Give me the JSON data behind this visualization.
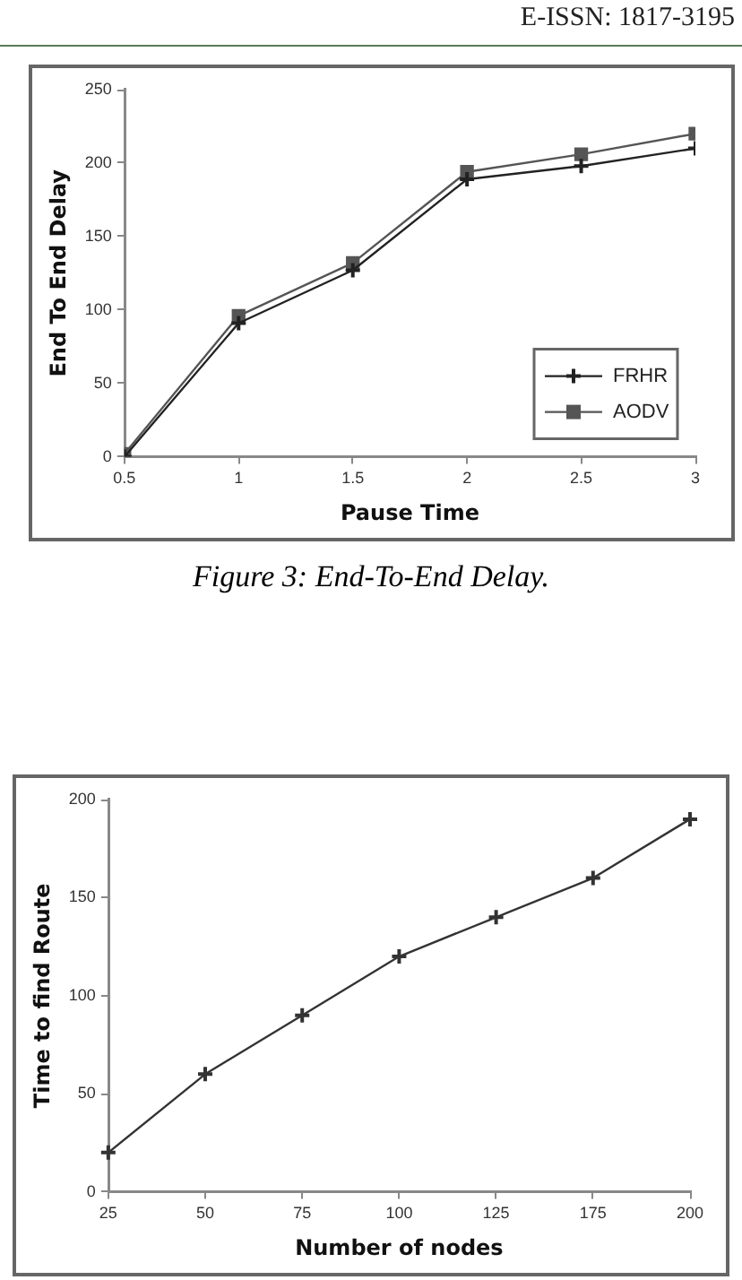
{
  "chart_data": [
    {
      "type": "line",
      "xlabel": "Pause Time",
      "ylabel": "End To End Delay",
      "x": [
        0.5,
        1,
        1.5,
        2,
        2.5,
        3
      ],
      "series": [
        {
          "name": "FRHR",
          "color": "#222222",
          "marker": "cross",
          "values": [
            0,
            91,
            127,
            189,
            198,
            210
          ]
        },
        {
          "name": "AODV",
          "color": "#555555",
          "marker": "square",
          "values": [
            2,
            96,
            132,
            194,
            206,
            220
          ]
        }
      ],
      "xlim": [
        0.5,
        3
      ],
      "xticks": [
        0.5,
        1,
        1.5,
        2,
        2.5,
        3
      ],
      "ylim": [
        0,
        250
      ],
      "yticks": [
        0,
        50,
        100,
        150,
        200,
        250
      ],
      "grid": false,
      "legend": "bottom right",
      "annotations": [
        "E-ISSN: 1817-3195",
        "Figure 3: End-To-End Delay."
      ]
    },
    {
      "type": "line",
      "xlabel": "Number of nodes",
      "ylabel": "Time to find Route",
      "categories": [
        "25",
        "50",
        "75",
        "100",
        "125",
        "175",
        "200"
      ],
      "series": [
        {
          "color": "#333333",
          "marker": "cross",
          "values": [
            20,
            60,
            90,
            120,
            140,
            160,
            190
          ]
        }
      ],
      "ylim": [
        0,
        200
      ],
      "yticks": [
        0,
        50,
        100,
        150,
        200
      ],
      "grid": false,
      "legend": false
    }
  ]
}
